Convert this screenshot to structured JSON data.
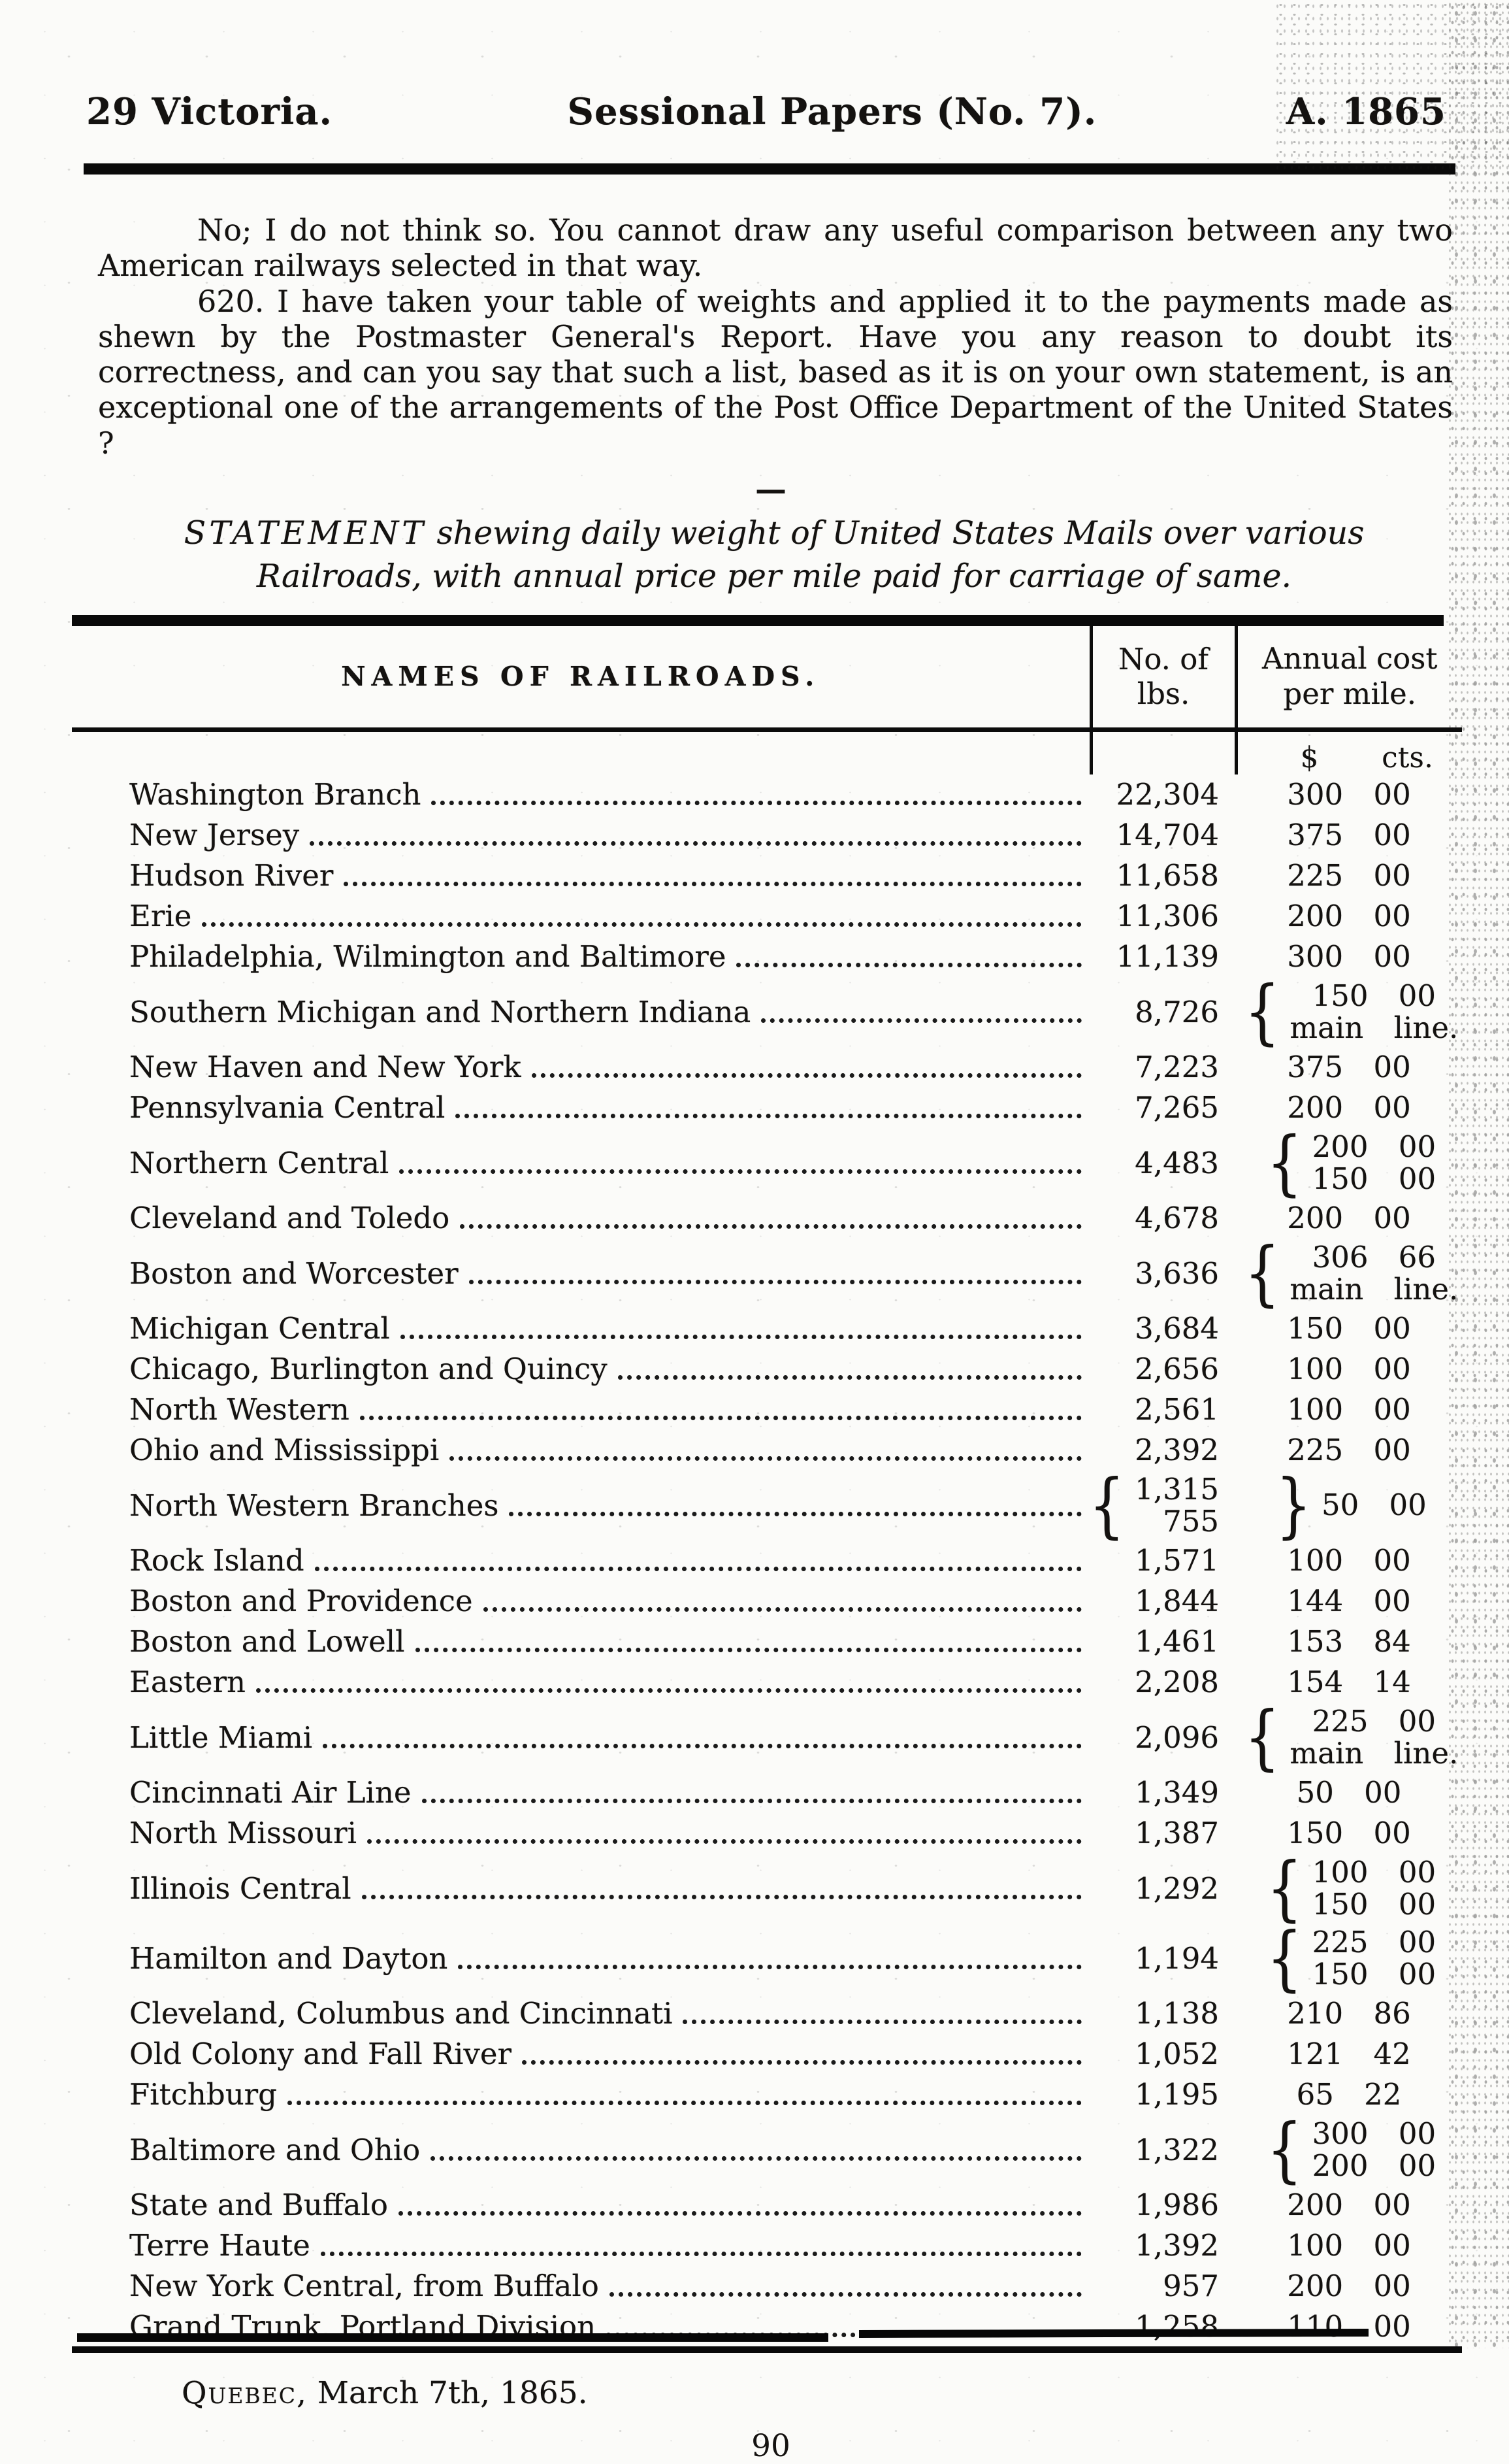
{
  "header": {
    "left": "29 Victoria.",
    "center": "Sessional Papers (No. 7).",
    "right": "A. 1865"
  },
  "paragraphs": {
    "p1": "No; I do not think so.  You cannot draw any useful comparison between any two American railways selected in that way.",
    "p2": "620. I have taken your table of weights and applied it to the payments made as shewn by the Postmaster General's Report.  Have you any reason to doubt its correctness, and can you say that such a list, based as it is on your own statement, is an exceptional one of the arrangements of the Post Office Department of the United States ?"
  },
  "divider_dash": "—",
  "statement_title": {
    "lead": "STATEMENT",
    "rest": " shewing daily weight of United States Mails over various Railroads, with annual price per mile paid for carriage of same."
  },
  "table": {
    "col_name_header": "NAMES OF RAILROADS.",
    "col_lbs_header": "No. of lbs.",
    "col_cost_header_line1": "Annual cost",
    "col_cost_header_line2": "per mile.",
    "currency_dollars": "$",
    "currency_cents": "cts.",
    "rows": [
      {
        "name": "Washington Branch",
        "lbs": "22,304",
        "cost": [
          "300 00"
        ]
      },
      {
        "name": "New Jersey",
        "lbs": "14,704",
        "cost": [
          "375 00"
        ]
      },
      {
        "name": "Hudson River",
        "lbs": "11,658",
        "cost": [
          "225 00"
        ]
      },
      {
        "name": "Erie",
        "lbs": "11,306",
        "cost": [
          "200 00"
        ]
      },
      {
        "name": "Philadelphia, Wilmington and Baltimore",
        "lbs": "11,139",
        "cost": [
          "300 00"
        ]
      },
      {
        "name": "Southern Michigan and Northern Indiana",
        "lbs": "8,726",
        "cost": [
          "150 00",
          "main line."
        ],
        "cost_brace": "{"
      },
      {
        "name": "New Haven and New York",
        "lbs": "7,223",
        "cost": [
          "375 00"
        ]
      },
      {
        "name": "Pennsylvania Central",
        "lbs": "7,265",
        "cost": [
          "200 00"
        ]
      },
      {
        "name": "Northern Central",
        "lbs": "4,483",
        "cost": [
          "200 00",
          "150 00"
        ],
        "cost_brace": "{"
      },
      {
        "name": "Cleveland and Toledo",
        "lbs": "4,678",
        "cost": [
          "200 00"
        ]
      },
      {
        "name": "Boston and Worcester",
        "lbs": "3,636",
        "cost": [
          "306 66",
          "main line."
        ],
        "cost_brace": "{"
      },
      {
        "name": "Michigan Central",
        "lbs": "3,684",
        "cost": [
          "150 00"
        ]
      },
      {
        "name": "Chicago, Burlington and Quincy",
        "lbs": "2,656",
        "cost": [
          "100 00"
        ]
      },
      {
        "name": "North Western",
        "lbs": "2,561",
        "cost": [
          "100 00"
        ]
      },
      {
        "name": "Ohio and Mississippi",
        "lbs": "2,392",
        "cost": [
          "225 00"
        ]
      },
      {
        "name": "North Western Branches",
        "lbs": [
          "1,315",
          "755"
        ],
        "lbs_brace": "{",
        "cost": [
          "50 00"
        ],
        "cost_brace": "}"
      },
      {
        "name": "Rock Island",
        "lbs": "1,571",
        "cost": [
          "100 00"
        ]
      },
      {
        "name": "Boston and Providence",
        "lbs": "1,844",
        "cost": [
          "144 00"
        ]
      },
      {
        "name": "Boston and Lowell",
        "lbs": "1,461",
        "cost": [
          "153 84"
        ]
      },
      {
        "name": "Eastern",
        "lbs": "2,208",
        "cost": [
          "154 14"
        ]
      },
      {
        "name": "Little Miami",
        "lbs": "2,096",
        "cost": [
          "225 00",
          "main line."
        ],
        "cost_brace": "{"
      },
      {
        "name": "Cincinnati Air Line",
        "lbs": "1,349",
        "cost": [
          "50 00"
        ]
      },
      {
        "name": "North Missouri",
        "lbs": "1,387",
        "cost": [
          "150 00"
        ]
      },
      {
        "name": "Illinois Central",
        "lbs": "1,292",
        "cost": [
          "100 00",
          "150 00"
        ],
        "cost_brace": "{"
      },
      {
        "name": "Hamilton and Dayton",
        "lbs": "1,194",
        "cost": [
          "225 00",
          "150 00"
        ],
        "cost_brace": "{"
      },
      {
        "name": "Cleveland, Columbus and Cincinnati",
        "lbs": "1,138",
        "cost": [
          "210 86"
        ]
      },
      {
        "name": "Old Colony and Fall River",
        "lbs": "1,052",
        "cost": [
          "121 42"
        ]
      },
      {
        "name": "Fitchburg",
        "lbs": "1,195",
        "cost": [
          "65 22"
        ]
      },
      {
        "name": "Baltimore and Ohio",
        "lbs": "1,322",
        "cost": [
          "300 00",
          "200 00"
        ],
        "cost_brace": "{"
      },
      {
        "name": "State and Buffalo",
        "lbs": "1,986",
        "cost": [
          "200 00"
        ]
      },
      {
        "name": "Terre Haute",
        "lbs": "1,392",
        "cost": [
          "100 00"
        ]
      },
      {
        "name": "New York Central, from Buffalo",
        "lbs": "957",
        "cost": [
          "200 00"
        ]
      },
      {
        "name": "Grand Trunk, Portland Division",
        "lbs": "1,258",
        "cost": [
          "110 00"
        ]
      }
    ]
  },
  "footer": {
    "place": "Quebec,",
    "date": " March 7th, 1865.",
    "page_number": "90"
  }
}
